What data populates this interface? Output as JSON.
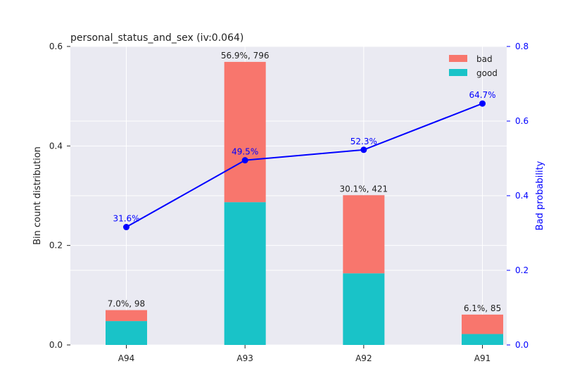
{
  "chart_data": {
    "type": "bar",
    "title": "personal_status_and_sex  (iv:0.064)",
    "categories": [
      "A94",
      "A93",
      "A92",
      "A91"
    ],
    "series": [
      {
        "name": "bad",
        "values": [
          0.022,
          0.282,
          0.157,
          0.039
        ],
        "color": "#F8766D"
      },
      {
        "name": "good",
        "values": [
          0.048,
          0.287,
          0.144,
          0.022
        ],
        "color": "#19C3C8"
      }
    ],
    "bar_labels": [
      "7.0%, 98",
      "56.9%, 796",
      "30.1%, 421",
      "6.1%, 85"
    ],
    "ylabel": "Bin count distribution",
    "ylim": [
      0,
      0.6
    ],
    "yticks": [
      0.0,
      0.2,
      0.4,
      0.6
    ],
    "ytick_labels": [
      "0.0",
      "0.2",
      "0.4",
      "0.6"
    ],
    "y2label": "Bad probability",
    "y2lim": [
      0,
      0.8
    ],
    "y2ticks": [
      0.0,
      0.2,
      0.4,
      0.6,
      0.8
    ],
    "y2tick_labels": [
      "0.0",
      "0.2",
      "0.4",
      "0.6",
      "0.8"
    ],
    "bad_probability": {
      "values": [
        0.316,
        0.495,
        0.523,
        0.647
      ],
      "labels": [
        "31.6%",
        "49.5%",
        "52.3%",
        "64.7%"
      ],
      "color": "#0000FF"
    },
    "legend": {
      "position": "top-right",
      "entries": [
        "bad",
        "good"
      ]
    },
    "grid": true,
    "background": "#EAEAF2"
  }
}
